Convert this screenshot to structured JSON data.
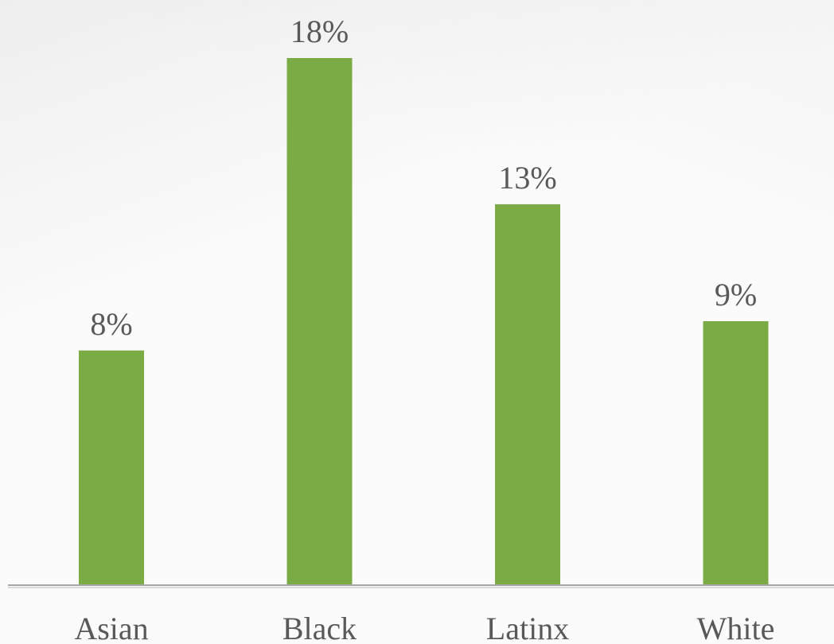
{
  "chart_data": {
    "type": "bar",
    "categories": [
      "Asian",
      "Black",
      "Latinx",
      "White"
    ],
    "values": [
      8,
      18,
      13,
      9
    ],
    "data_labels": [
      "8%",
      "18%",
      "13%",
      "9%"
    ],
    "ylim": [
      0,
      18
    ],
    "bar_color": "#7aab45",
    "axis_color": "#a6a6a6",
    "label_color": "#595959",
    "grid": false,
    "legend": "none"
  }
}
